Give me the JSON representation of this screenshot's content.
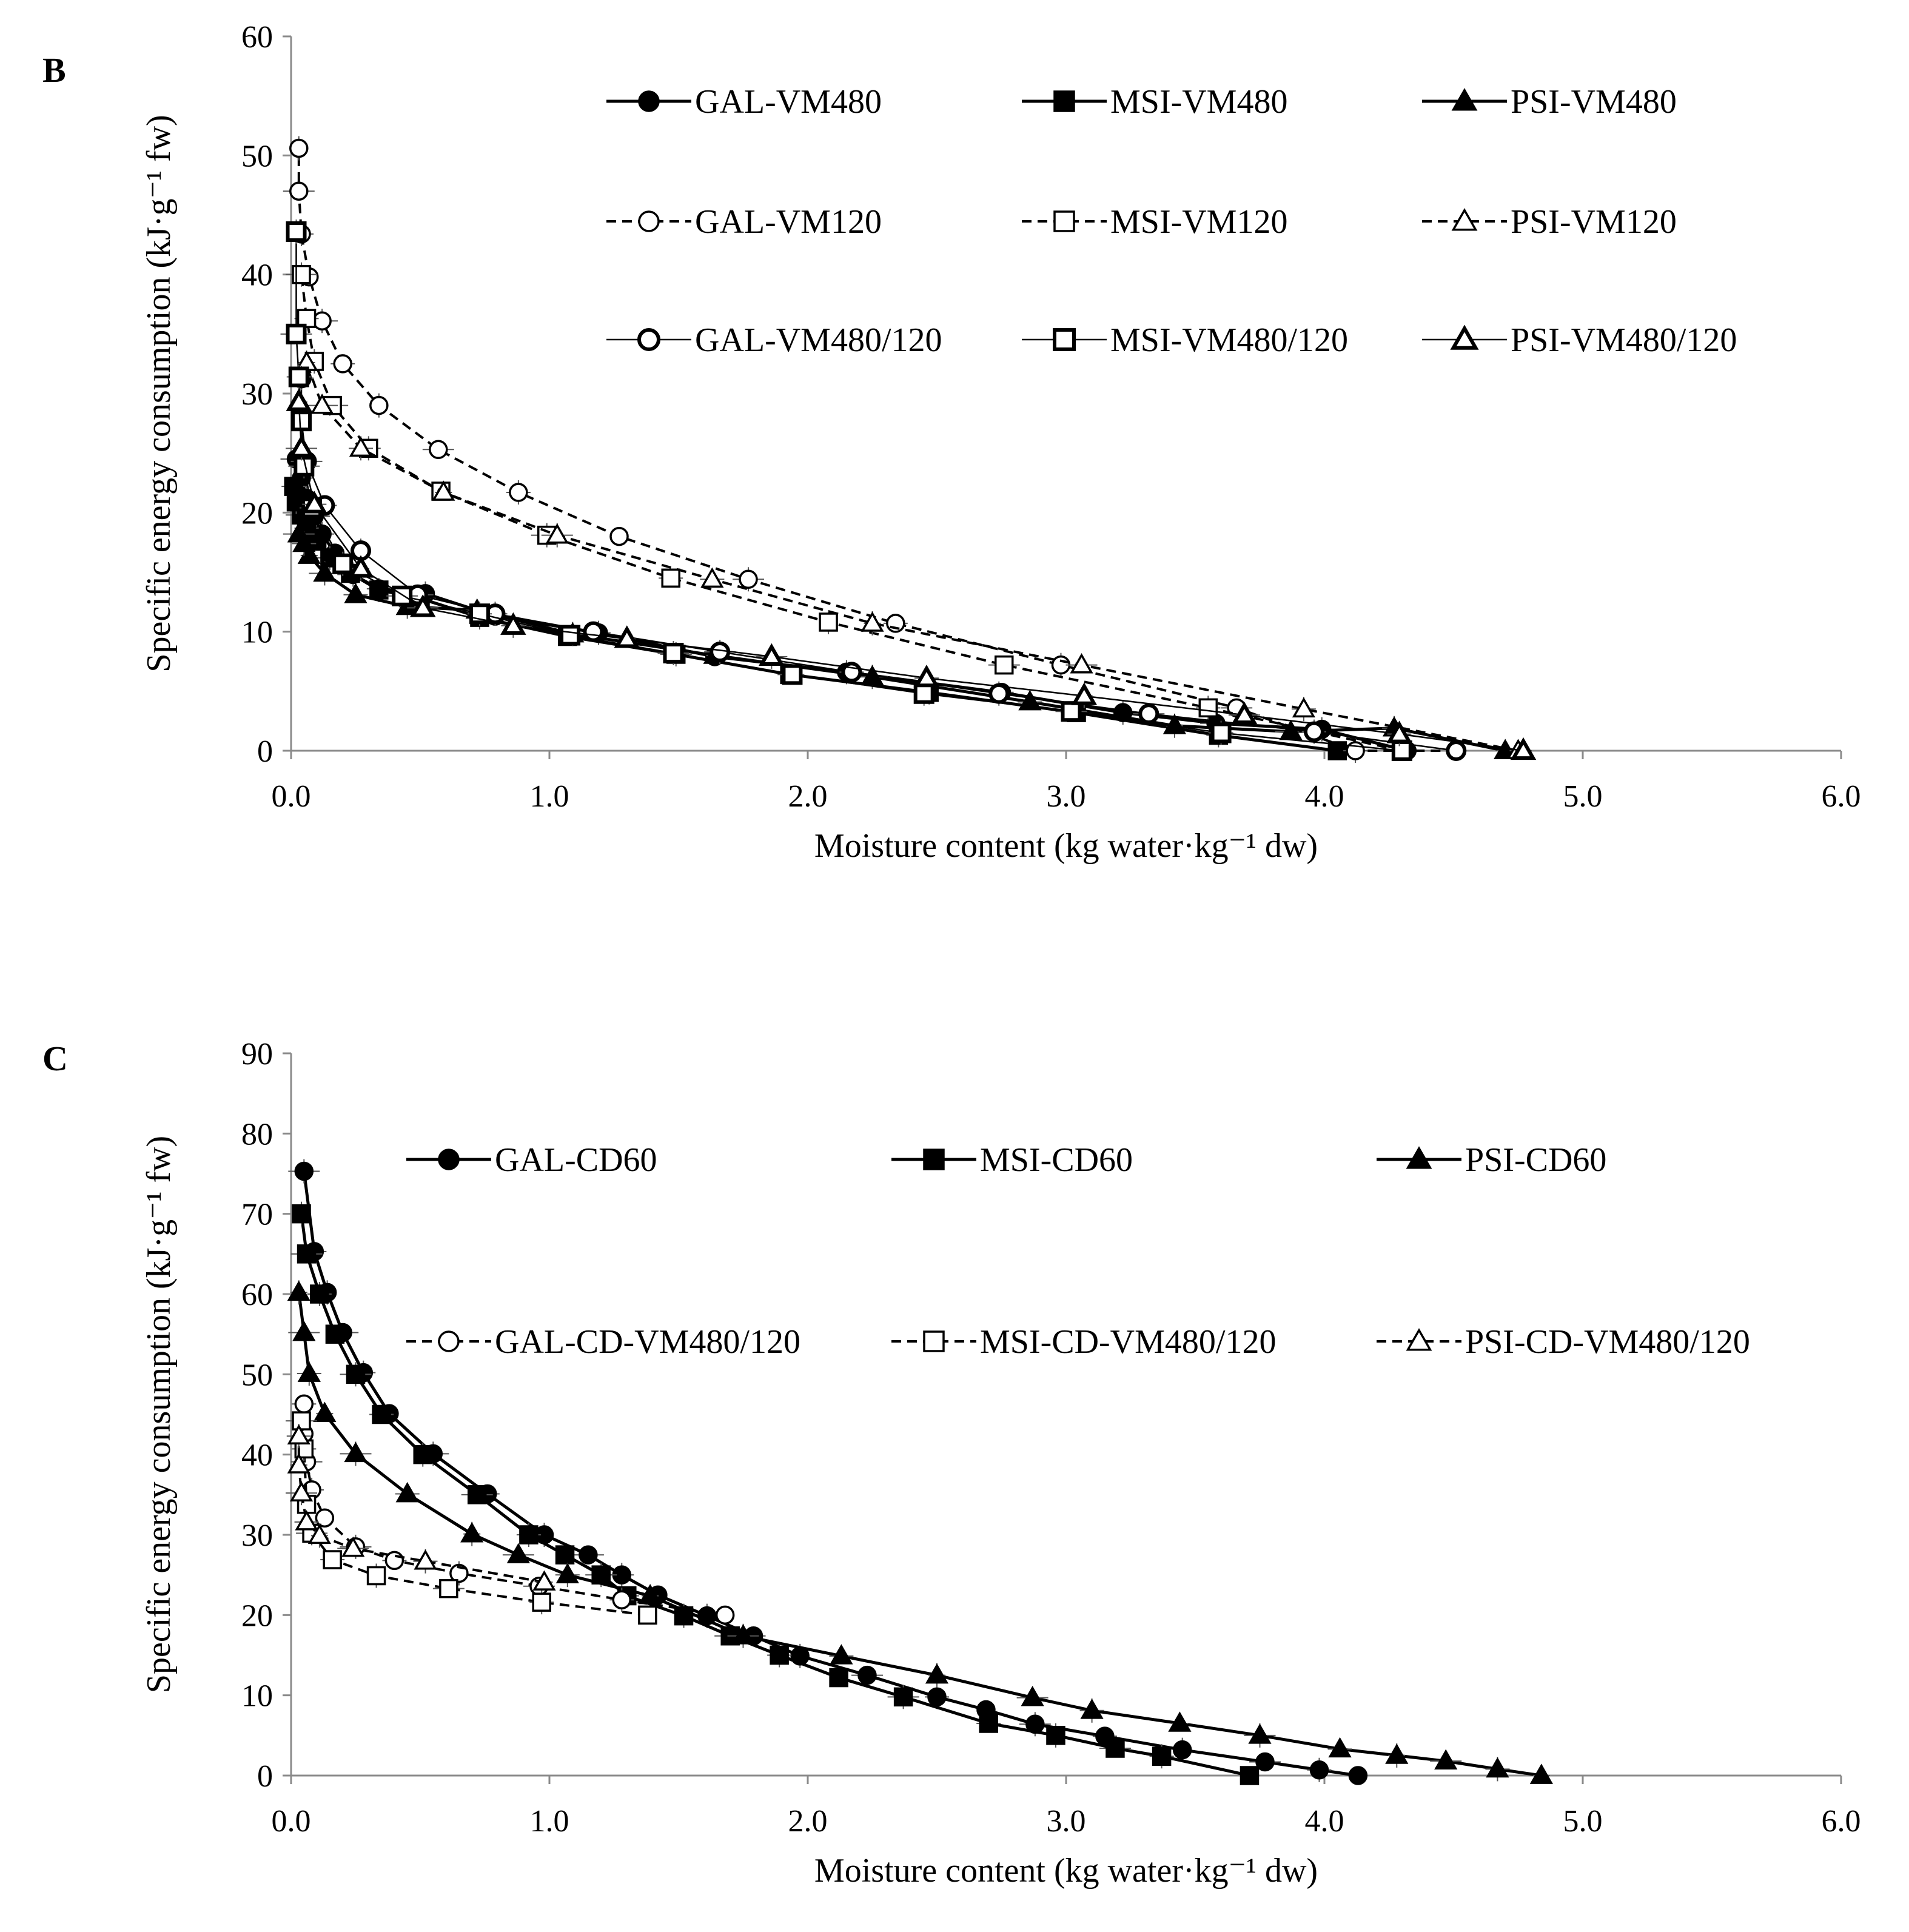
{
  "chart_data": [
    {
      "panel": "B",
      "type": "line",
      "xlabel": "Moisture content (kg water·kg⁻¹ dw)",
      "ylabel": "Specific energy consumption (kJ·g⁻¹ fw)",
      "xlim": [
        0,
        6
      ],
      "ylim": [
        0,
        60
      ],
      "xticks": [
        "0.0",
        "1.0",
        "2.0",
        "3.0",
        "4.0",
        "5.0",
        "6.0"
      ],
      "yticks": [
        "0",
        "10",
        "20",
        "30",
        "40",
        "50",
        "60"
      ],
      "grid": false,
      "legend": "top-right, 3 columns",
      "series": [
        {
          "name": "GAL-VM480",
          "line": "solid",
          "marker": "circle",
          "fill": "filled",
          "x": [
            4.32,
            3.99,
            3.58,
            3.22,
            2.75,
            2.15,
            1.64,
            1.19,
            0.79,
            0.52,
            0.34,
            0.24,
            0.17,
            0.12,
            0.09,
            0.06,
            0.04,
            0.02
          ],
          "y": [
            0.0,
            1.8,
            2.3,
            3.2,
            4.9,
            6.6,
            7.9,
            9.9,
            11.3,
            13.2,
            13.6,
            14.8,
            16.6,
            18.2,
            19.7,
            21.2,
            22.9,
            24.5
          ]
        },
        {
          "name": "MSI-VM480",
          "line": "solid",
          "marker": "square",
          "fill": "filled",
          "x": [
            4.05,
            3.59,
            3.04,
            2.47,
            1.93,
            1.49,
            1.07,
            0.73,
            0.5,
            0.34,
            0.23,
            0.15,
            0.1,
            0.06,
            0.04,
            0.02,
            0.01
          ],
          "y": [
            0.0,
            1.3,
            3.2,
            4.9,
            6.4,
            8.1,
            9.6,
            11.2,
            12.8,
            13.5,
            14.9,
            16.2,
            17.6,
            18.7,
            19.8,
            20.9,
            22.2
          ]
        },
        {
          "name": "PSI-VM480",
          "line": "solid",
          "marker": "triangle",
          "fill": "filled",
          "x": [
            4.7,
            4.27,
            3.87,
            3.42,
            2.86,
            2.25,
            1.64,
            1.09,
            0.72,
            0.45,
            0.25,
            0.13,
            0.07,
            0.05,
            0.03
          ],
          "y": [
            0.0,
            1.9,
            1.6,
            2.1,
            4.1,
            6.2,
            8.0,
            9.8,
            11.8,
            12.1,
            13.1,
            14.9,
            16.4,
            17.4,
            18.2
          ]
        },
        {
          "name": "GAL-VM120",
          "line": "dashed",
          "marker": "circle",
          "fill": "open",
          "x": [
            4.51,
            4.12,
            3.66,
            2.98,
            2.34,
            1.77,
            1.27,
            0.88,
            0.57,
            0.34,
            0.2,
            0.12,
            0.07,
            0.04,
            0.03,
            0.03
          ],
          "y": [
            0.0,
            0.0,
            3.6,
            7.2,
            10.7,
            14.4,
            18.0,
            21.7,
            25.3,
            29.0,
            32.5,
            36.1,
            39.8,
            43.4,
            47.0,
            50.6
          ]
        },
        {
          "name": "MSI-VM120",
          "line": "dashed",
          "marker": "square",
          "fill": "open",
          "x": [
            4.3,
            3.55,
            2.76,
            2.08,
            1.47,
            0.99,
            0.58,
            0.3,
            0.16,
            0.09,
            0.06,
            0.04
          ],
          "y": [
            0.0,
            3.6,
            7.2,
            10.8,
            14.5,
            18.1,
            21.8,
            25.4,
            29.0,
            32.7,
            36.3,
            40.0
          ]
        },
        {
          "name": "PSI-VM120",
          "line": "dashed",
          "marker": "triangle",
          "fill": "open",
          "x": [
            4.75,
            3.92,
            3.06,
            2.25,
            1.63,
            1.03,
            0.59,
            0.27,
            0.12,
            0.06
          ],
          "y": [
            0.0,
            3.5,
            7.2,
            10.7,
            14.4,
            18.1,
            21.7,
            25.4,
            29.0,
            32.6
          ]
        },
        {
          "name": "GAL-VM480/120",
          "line": "solid",
          "marker": "circle",
          "fill": "open-bold",
          "x": [
            4.51,
            3.96,
            3.32,
            2.74,
            2.17,
            1.66,
            1.17,
            0.79,
            0.49,
            0.27,
            0.13,
            0.06,
            0.04,
            0.04
          ],
          "y": [
            0.0,
            1.6,
            3.1,
            4.8,
            6.6,
            8.3,
            10.0,
            11.5,
            13.1,
            16.8,
            20.6,
            24.3,
            27.7,
            31.3
          ]
        },
        {
          "name": "MSI-VM480/120",
          "line": "solid",
          "marker": "square",
          "fill": "open-bold",
          "x": [
            4.3,
            3.6,
            3.02,
            2.45,
            1.94,
            1.48,
            1.08,
            0.73,
            0.43,
            0.2,
            0.08,
            0.05,
            0.04,
            0.03,
            0.02,
            0.02
          ],
          "y": [
            0.0,
            1.5,
            3.3,
            4.8,
            6.4,
            8.2,
            9.7,
            11.5,
            13.0,
            15.7,
            20.4,
            23.9,
            27.7,
            31.4,
            35.0,
            43.6
          ]
        },
        {
          "name": "PSI-VM480/120",
          "line": "solid",
          "marker": "triangle",
          "fill": "open-bold",
          "x": [
            4.77,
            4.29,
            3.69,
            3.07,
            2.46,
            1.86,
            1.3,
            0.86,
            0.51,
            0.27,
            0.09,
            0.04,
            0.03
          ],
          "y": [
            0.0,
            1.4,
            3.0,
            4.6,
            6.1,
            7.9,
            9.4,
            10.5,
            12.0,
            15.3,
            20.7,
            25.4,
            29.3
          ]
        }
      ]
    },
    {
      "panel": "C",
      "type": "line",
      "xlabel": "Moisture content (kg water·kg⁻¹ dw)",
      "ylabel": "Specific energy consumption (kJ·g⁻¹ fw)",
      "xlim": [
        0,
        6
      ],
      "ylim": [
        0,
        90
      ],
      "xticks": [
        "0.0",
        "1.0",
        "2.0",
        "3.0",
        "4.0",
        "5.0",
        "6.0"
      ],
      "yticks": [
        "0",
        "10",
        "20",
        "30",
        "40",
        "50",
        "60",
        "70",
        "80",
        "90"
      ],
      "grid": false,
      "legend": "top-right, 3 columns",
      "series": [
        {
          "name": "GAL-CD60",
          "line": "solid",
          "marker": "circle",
          "fill": "filled",
          "x": [
            4.13,
            3.98,
            3.77,
            3.45,
            3.15,
            2.88,
            2.69,
            2.5,
            2.23,
            1.97,
            1.79,
            1.61,
            1.42,
            1.28,
            1.15,
            0.98,
            0.76,
            0.55,
            0.38,
            0.28,
            0.2,
            0.14,
            0.09,
            0.05
          ],
          "y": [
            0.0,
            0.7,
            1.7,
            3.2,
            4.9,
            6.4,
            8.2,
            9.8,
            12.5,
            14.9,
            17.4,
            19.9,
            22.5,
            25.0,
            27.5,
            30.0,
            35.1,
            40.1,
            45.1,
            50.2,
            55.2,
            60.2,
            65.3,
            75.3
          ]
        },
        {
          "name": "MSI-CD60",
          "line": "solid",
          "marker": "square",
          "fill": "filled",
          "x": [
            3.71,
            3.37,
            3.19,
            2.96,
            2.7,
            2.37,
            2.12,
            1.89,
            1.7,
            1.52,
            1.3,
            1.2,
            1.06,
            0.92,
            0.72,
            0.51,
            0.35,
            0.25,
            0.17,
            0.11,
            0.06,
            0.04
          ],
          "y": [
            0.0,
            2.4,
            3.4,
            5.0,
            6.5,
            9.8,
            12.2,
            15.0,
            17.4,
            19.9,
            22.4,
            25.0,
            27.5,
            30.0,
            35.0,
            40.0,
            45.0,
            50.0,
            55.0,
            60.0,
            65.0,
            70.0
          ]
        },
        {
          "name": "PSI-CD60",
          "line": "solid",
          "marker": "triangle",
          "fill": "filled",
          "x": [
            4.84,
            4.67,
            4.47,
            4.28,
            4.06,
            3.75,
            3.44,
            3.1,
            2.87,
            2.5,
            2.13,
            1.75,
            1.39,
            1.07,
            0.88,
            0.7,
            0.45,
            0.25,
            0.13,
            0.07,
            0.05,
            0.03
          ],
          "y": [
            0.0,
            0.8,
            1.8,
            2.5,
            3.3,
            5.0,
            6.5,
            8.1,
            9.7,
            12.5,
            14.9,
            17.4,
            22.4,
            25.0,
            27.5,
            30.1,
            35.1,
            40.1,
            45.1,
            50.1,
            55.2,
            60.2
          ]
        },
        {
          "name": "GAL-CD-VM480/120",
          "line": "dashed",
          "marker": "circle",
          "fill": "open",
          "x": [
            1.68,
            1.28,
            0.96,
            0.65,
            0.4,
            0.25,
            0.13,
            0.08,
            0.06,
            0.05,
            0.05
          ],
          "y": [
            20.0,
            21.9,
            23.6,
            25.2,
            26.8,
            28.5,
            32.1,
            35.6,
            39.1,
            42.6,
            46.3
          ]
        },
        {
          "name": "MSI-CD-VM480/120",
          "line": "dashed",
          "marker": "square",
          "fill": "open",
          "x": [
            1.38,
            0.97,
            0.61,
            0.33,
            0.16,
            0.08,
            0.06,
            0.05,
            0.04
          ],
          "y": [
            20.0,
            21.6,
            23.3,
            24.9,
            26.9,
            30.2,
            33.8,
            40.7,
            44.2
          ]
        },
        {
          "name": "PSI-CD-VM480/120",
          "line": "dashed",
          "marker": "triangle",
          "fill": "open",
          "x": [
            0.98,
            0.52,
            0.24,
            0.11,
            0.06,
            0.04,
            0.03,
            0.03
          ],
          "y": [
            24.1,
            26.7,
            28.3,
            29.9,
            31.6,
            35.2,
            38.7,
            42.3
          ]
        }
      ]
    }
  ],
  "panels": {
    "b": {
      "label": "B"
    },
    "c": {
      "label": "C"
    }
  }
}
